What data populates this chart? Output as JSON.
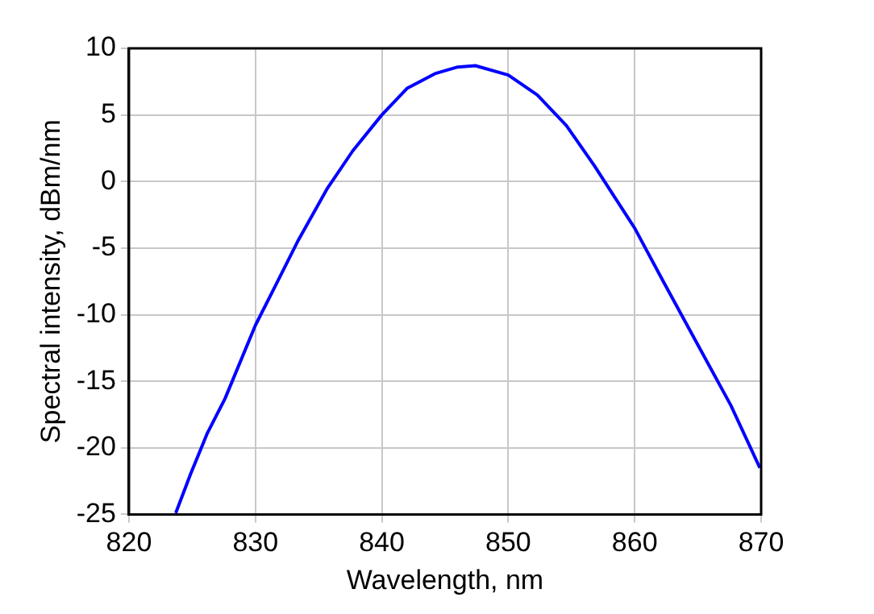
{
  "chart_data": {
    "type": "line",
    "xlabel": "Wavelength, nm",
    "ylabel": "Spectral intensity, dBm/nm",
    "xlim": [
      820,
      870
    ],
    "ylim": [
      -25,
      10
    ],
    "xticks": [
      820,
      830,
      840,
      850,
      860,
      870
    ],
    "yticks": [
      -25,
      -20,
      -15,
      -10,
      -5,
      0,
      5,
      10
    ],
    "grid": true,
    "legend": false,
    "marker": "none",
    "line_style": "solid",
    "series": [
      {
        "color": "#0000ff",
        "x": [
          823.7,
          824.9,
          826.2,
          827.6,
          830,
          831.6,
          833.4,
          835.7,
          837.7,
          840,
          842,
          844.2,
          846,
          847.4,
          850,
          852.3,
          854.6,
          856.8,
          860,
          862.2,
          864.9,
          867.6,
          869.9
        ],
        "values": [
          -24.9,
          -21.9,
          -18.9,
          -16.3,
          -10.8,
          -7.8,
          -4.4,
          -0.5,
          2.3,
          5.0,
          7.0,
          8.1,
          8.6,
          8.7,
          8.0,
          6.5,
          4.2,
          1.2,
          -3.5,
          -7.4,
          -12.1,
          -16.8,
          -21.5
        ]
      }
    ]
  }
}
